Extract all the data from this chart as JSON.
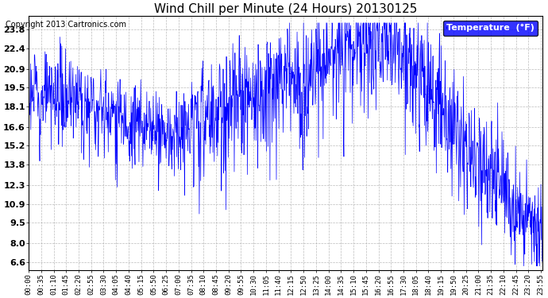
{
  "title": "Wind Chill per Minute (24 Hours) 20130125",
  "copyright": "Copyright 2013 Cartronics.com",
  "legend_label": "Temperature  (°F)",
  "line_color": "blue",
  "bg_color": "#ffffff",
  "plot_bg_color": "#ffffff",
  "grid_color": "#aaaaaa",
  "yticks": [
    6.6,
    8.0,
    9.5,
    10.9,
    12.3,
    13.8,
    15.2,
    16.6,
    18.1,
    19.5,
    20.9,
    22.4,
    23.8
  ],
  "ylim": [
    6.0,
    24.8
  ],
  "total_minutes": 1440,
  "xtick_interval": 35,
  "xtick_labels": [
    "00:00",
    "00:35",
    "01:10",
    "01:45",
    "02:20",
    "02:55",
    "03:30",
    "04:05",
    "04:40",
    "05:15",
    "05:50",
    "06:25",
    "07:00",
    "07:35",
    "08:10",
    "08:45",
    "09:20",
    "09:55",
    "10:30",
    "11:05",
    "11:40",
    "12:15",
    "12:50",
    "13:25",
    "14:00",
    "14:35",
    "15:10",
    "15:45",
    "16:20",
    "16:55",
    "17:30",
    "18:05",
    "18:40",
    "19:15",
    "19:50",
    "20:25",
    "21:00",
    "21:35",
    "22:10",
    "22:45",
    "23:20",
    "23:55"
  ],
  "legend_box_color": "blue",
  "legend_text_color": "#ffffff",
  "title_fontsize": 11,
  "copyright_fontsize": 7,
  "axis_fontsize": 6.5,
  "ytick_fontsize": 8
}
